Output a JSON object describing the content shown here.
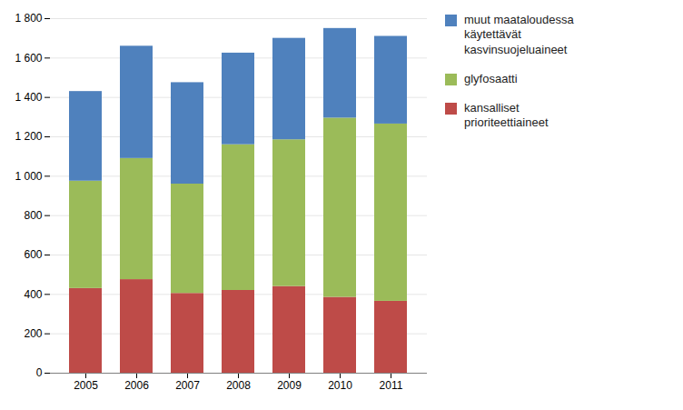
{
  "chart_data": {
    "type": "bar",
    "stacked": true,
    "categories": [
      "2005",
      "2006",
      "2007",
      "2008",
      "2009",
      "2010",
      "2011"
    ],
    "series": [
      {
        "name": "kansalliset\nprioriteettiaineet",
        "color": "#be4b48",
        "values": [
          430,
          475,
          405,
          420,
          440,
          385,
          365
        ]
      },
      {
        "name": "glyfosaatti",
        "color": "#9bbb59",
        "values": [
          545,
          615,
          555,
          740,
          745,
          910,
          900
        ]
      },
      {
        "name": "muut maataloudessa\nkäytettävät\nkasvinsuojeluaineet",
        "color": "#4f81bd",
        "values": [
          455,
          570,
          515,
          465,
          515,
          455,
          445
        ]
      }
    ],
    "ylim": [
      0,
      1800
    ],
    "yticks": [
      0,
      200,
      400,
      600,
      800,
      {
        "value": 1000,
        "label": "1 000"
      },
      {
        "value": 1200,
        "label": "1 200"
      },
      {
        "value": 1400,
        "label": "1 400"
      },
      {
        "value": 1600,
        "label": "1 600"
      },
      {
        "value": 1800,
        "label": "1 800"
      }
    ],
    "grid": true,
    "legend": "right"
  }
}
